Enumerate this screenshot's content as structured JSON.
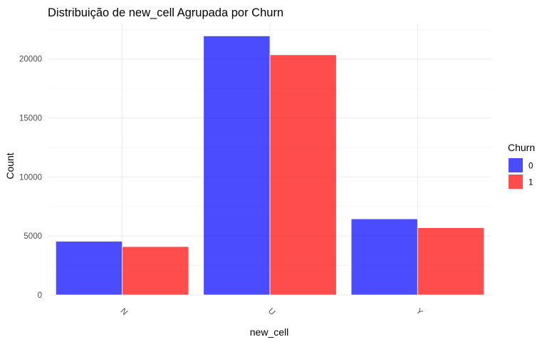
{
  "chart_data": {
    "type": "bar",
    "title": "Distribuição de new_cell Agrupada por Churn",
    "xlabel": "new_cell",
    "ylabel": "Count",
    "categories": [
      "N",
      "U",
      "Y"
    ],
    "series": [
      {
        "name": "0",
        "color": "#0000ff",
        "values": [
          4550,
          21950,
          6450
        ]
      },
      {
        "name": "1",
        "color": "#ff0000",
        "values": [
          4100,
          20350,
          5700
        ]
      }
    ],
    "ylim": [
      0,
      23000
    ],
    "yticks": [
      "0",
      "5000",
      "10000",
      "15000",
      "20000"
    ],
    "grid": true,
    "legend": {
      "title": "Churn",
      "position": "right"
    }
  }
}
